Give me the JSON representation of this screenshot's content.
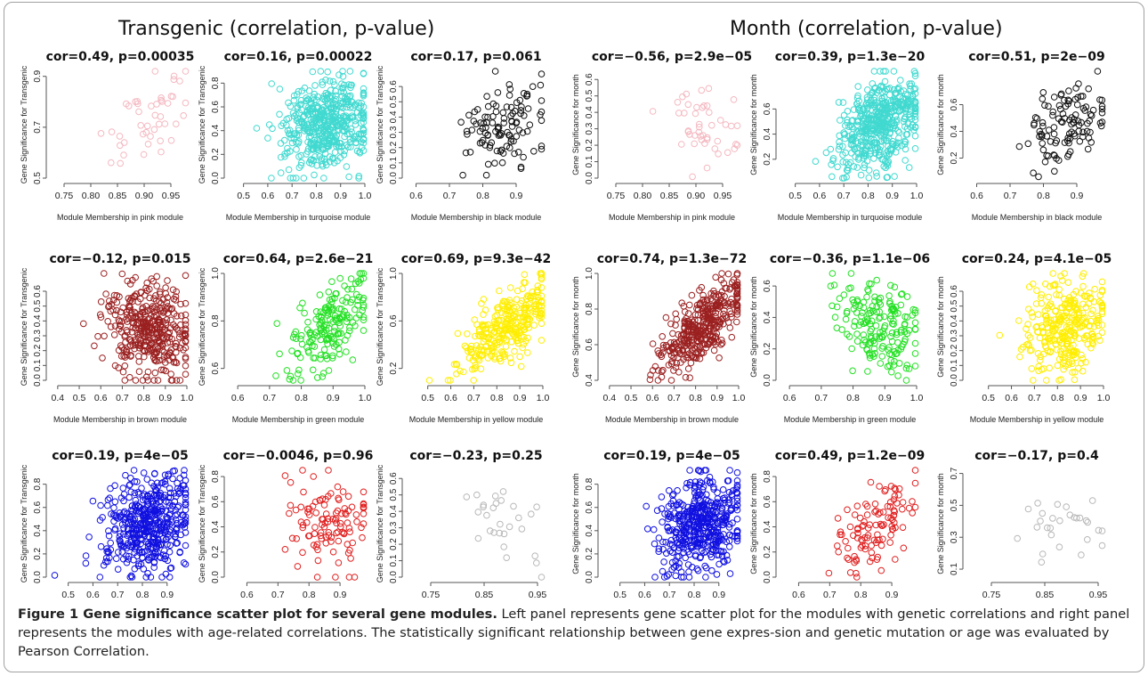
{
  "panels": {
    "left_title": "Transgenic (correlation, p-value)",
    "right_title": "Month (correlation, p-value)"
  },
  "caption": {
    "bold": "Figure 1 Gene significance scatter plot for several gene modules.",
    "text": " Left panel represents gene scatter plot for the modules with genetic correlations and right panel represents the modules with age-related correlations. The statistically significant relationship between gene expres-sion and genetic mutation or age was evaluated by Pearson Correlation."
  },
  "colors": {
    "pink": "#f4b8c0",
    "turquoise": "#40d9d0",
    "black": "#111111",
    "brown": "#9b2020",
    "green": "#22e022",
    "yellow": "#ffee00",
    "blue": "#1010e0",
    "red": "#e02020",
    "grey": "#b8b8b8"
  },
  "chart_data": [
    {
      "type": "scatter",
      "title": "cor=0.49, p=0.00035",
      "xlabel": "Module Membership in pink module",
      "ylabel": "Gene Significance for Transgenic",
      "color": "pink",
      "xlim": [
        0.73,
        0.98
      ],
      "ylim": [
        0.5,
        0.92
      ],
      "xticks": [
        "0.75",
        "0.80",
        "0.85",
        "0.90",
        "0.95"
      ],
      "xtick_values": [
        0.75,
        0.8,
        0.85,
        0.9,
        0.95
      ],
      "yticks": [
        "0.5",
        "0.7",
        "0.9"
      ],
      "ytick_values": [
        0.5,
        0.7,
        0.9
      ],
      "n": 45,
      "cor": 0.49
    },
    {
      "type": "scatter",
      "title": "cor=0.16, p=0.00022",
      "xlabel": "Module Membership in turquoise module",
      "ylabel": "Gene Significance for Transgenic",
      "color": "turquoise",
      "xlim": [
        0.45,
        1.0
      ],
      "ylim": [
        0.0,
        0.9
      ],
      "xticks": [
        "0.5",
        "0.6",
        "0.7",
        "0.8",
        "0.9",
        "1.0"
      ],
      "xtick_values": [
        0.5,
        0.6,
        0.7,
        0.8,
        0.9,
        1.0
      ],
      "yticks": [
        "0.0",
        "0.2",
        "0.4",
        "0.6",
        "0.8"
      ],
      "ytick_values": [
        0,
        0.2,
        0.4,
        0.6,
        0.8
      ],
      "n": 480,
      "cor": 0.16
    },
    {
      "type": "scatter",
      "title": "cor=0.17, p=0.061",
      "xlabel": "Module Membership in black module",
      "ylabel": "Gene Significance for Transgenic",
      "color": "black",
      "xlim": [
        0.58,
        0.98
      ],
      "ylim": [
        0.0,
        0.7
      ],
      "xticks": [
        "0.6",
        "0.7",
        "0.8",
        "0.9"
      ],
      "xtick_values": [
        0.6,
        0.7,
        0.8,
        0.9
      ],
      "yticks": [
        "0.0",
        "0.1",
        "0.2",
        "0.3",
        "0.4",
        "0.5",
        "0.6"
      ],
      "ytick_values": [
        0,
        0.1,
        0.2,
        0.3,
        0.4,
        0.5,
        0.6
      ],
      "n": 110,
      "cor": 0.17
    },
    {
      "type": "scatter",
      "title": "cor=−0.56, p=2.9e−05",
      "xlabel": "Module Membership in pink module",
      "ylabel": "Gene Significance for month",
      "color": "pink",
      "xlim": [
        0.73,
        0.98
      ],
      "ylim": [
        0.0,
        0.65
      ],
      "xticks": [
        "0.75",
        "0.80",
        "0.85",
        "0.90",
        "0.95"
      ],
      "xtick_values": [
        0.75,
        0.8,
        0.85,
        0.9,
        0.95
      ],
      "yticks": [
        "0.0",
        "0.1",
        "0.2",
        "0.3",
        "0.4",
        "0.5",
        "0.6"
      ],
      "ytick_values": [
        0,
        0.1,
        0.2,
        0.3,
        0.4,
        0.5,
        0.6
      ],
      "n": 45,
      "cor": -0.56
    },
    {
      "type": "scatter",
      "title": "cor=0.39, p=1.3e−20",
      "xlabel": "Module Membership in turquoise module",
      "ylabel": "Gene Significance for month",
      "color": "turquoise",
      "xlim": [
        0.45,
        1.0
      ],
      "ylim": [
        0.05,
        0.9
      ],
      "xticks": [
        "0.5",
        "0.6",
        "0.7",
        "0.8",
        "0.9",
        "1.0"
      ],
      "xtick_values": [
        0.5,
        0.6,
        0.7,
        0.8,
        0.9,
        1.0
      ],
      "yticks": [
        "0.2",
        "0.4",
        "0.6"
      ],
      "ytick_values": [
        0.2,
        0.4,
        0.6
      ],
      "n": 480,
      "cor": 0.39
    },
    {
      "type": "scatter",
      "title": "cor=0.51, p=2e−09",
      "xlabel": "Module Membership in black module",
      "ylabel": "Gene Significance for month",
      "color": "black",
      "xlim": [
        0.58,
        0.98
      ],
      "ylim": [
        0.05,
        0.85
      ],
      "xticks": [
        "0.6",
        "0.7",
        "0.8",
        "0.9"
      ],
      "xtick_values": [
        0.6,
        0.7,
        0.8,
        0.9
      ],
      "yticks": [
        "0.2",
        "0.4",
        "0.6"
      ],
      "ytick_values": [
        0.2,
        0.4,
        0.6
      ],
      "n": 110,
      "cor": 0.51
    },
    {
      "type": "scatter",
      "title": "cor=−0.12, p=0.015",
      "xlabel": "Module Membership in brown module",
      "ylabel": "Gene Significance for Transgenic",
      "color": "brown",
      "xlim": [
        0.38,
        1.0
      ],
      "ylim": [
        0.0,
        0.72
      ],
      "xticks": [
        "0.4",
        "0.5",
        "0.6",
        "0.7",
        "0.8",
        "0.9",
        "1.0"
      ],
      "xtick_values": [
        0.4,
        0.5,
        0.6,
        0.7,
        0.8,
        0.9,
        1.0
      ],
      "yticks": [
        "0.0",
        "0.1",
        "0.2",
        "0.3",
        "0.4",
        "0.5",
        "0.6"
      ],
      "ytick_values": [
        0,
        0.1,
        0.2,
        0.3,
        0.4,
        0.5,
        0.6
      ],
      "n": 380,
      "cor": -0.12
    },
    {
      "type": "scatter",
      "title": "cor=0.64, p=2.6e−21",
      "xlabel": "Module Membership in green module",
      "ylabel": "Gene Significance for Transgenic",
      "color": "green",
      "xlim": [
        0.58,
        1.0
      ],
      "ylim": [
        0.55,
        1.0
      ],
      "xticks": [
        "0.6",
        "0.7",
        "0.8",
        "0.9",
        "1.0"
      ],
      "xtick_values": [
        0.6,
        0.7,
        0.8,
        0.9,
        1.0
      ],
      "yticks": [
        "0.6",
        "0.8",
        "1.0"
      ],
      "ytick_values": [
        0.6,
        0.8,
        1.0
      ],
      "n": 180,
      "cor": 0.64
    },
    {
      "type": "scatter",
      "title": "cor=0.69, p=9.3e−42",
      "xlabel": "Module Membership in yellow module",
      "ylabel": "Gene Significance for Transgenic",
      "color": "yellow",
      "xlim": [
        0.42,
        1.0
      ],
      "ylim": [
        0.1,
        1.0
      ],
      "xticks": [
        "0.5",
        "0.6",
        "0.7",
        "0.8",
        "0.9",
        "1.0"
      ],
      "xtick_values": [
        0.5,
        0.6,
        0.7,
        0.8,
        0.9,
        1.0
      ],
      "yticks": [
        "0.2",
        "0.6",
        "1.0"
      ],
      "ytick_values": [
        0.2,
        0.6,
        1.0
      ],
      "n": 300,
      "cor": 0.69
    },
    {
      "type": "scatter",
      "title": "cor=0.74, p=1.3e−72",
      "xlabel": "Module Membership in brown module",
      "ylabel": "Gene Significance for month",
      "color": "brown",
      "xlim": [
        0.38,
        1.0
      ],
      "ylim": [
        0.4,
        1.0
      ],
      "xticks": [
        "0.4",
        "0.5",
        "0.6",
        "0.7",
        "0.8",
        "0.9",
        "1.0"
      ],
      "xtick_values": [
        0.4,
        0.5,
        0.6,
        0.7,
        0.8,
        0.9,
        1.0
      ],
      "yticks": [
        "0.4",
        "0.6",
        "0.8",
        "1.0"
      ],
      "ytick_values": [
        0.4,
        0.6,
        0.8,
        1.0
      ],
      "n": 380,
      "cor": 0.74
    },
    {
      "type": "scatter",
      "title": "cor=−0.36, p=1.1e−06",
      "xlabel": "Module Membership in green module",
      "ylabel": "Gene Significance for month",
      "color": "green",
      "xlim": [
        0.58,
        1.0
      ],
      "ylim": [
        0.0,
        0.68
      ],
      "xticks": [
        "0.6",
        "0.7",
        "0.8",
        "0.9",
        "1.0"
      ],
      "xtick_values": [
        0.6,
        0.7,
        0.8,
        0.9,
        1.0
      ],
      "yticks": [
        "0.0",
        "0.2",
        "0.4",
        "0.6"
      ],
      "ytick_values": [
        0,
        0.2,
        0.4,
        0.6
      ],
      "n": 180,
      "cor": -0.36
    },
    {
      "type": "scatter",
      "title": "cor=0.24, p=4.1e−05",
      "xlabel": "Module Membership in yellow module",
      "ylabel": "Gene Significance for month",
      "color": "yellow",
      "xlim": [
        0.42,
        1.0
      ],
      "ylim": [
        0.0,
        0.72
      ],
      "xticks": [
        "0.5",
        "0.6",
        "0.7",
        "0.8",
        "0.9",
        "1.0"
      ],
      "xtick_values": [
        0.5,
        0.6,
        0.7,
        0.8,
        0.9,
        1.0
      ],
      "yticks": [
        "0.0",
        "0.1",
        "0.2",
        "0.3",
        "0.4",
        "0.5",
        "0.6"
      ],
      "ytick_values": [
        0,
        0.1,
        0.2,
        0.3,
        0.4,
        0.5,
        0.6
      ],
      "n": 300,
      "cor": 0.24
    },
    {
      "type": "scatter",
      "title": "cor=0.19, p=4e−05",
      "xlabel": "Module Membership in blue module",
      "ylabel": "Gene Significance for Transgenic",
      "color": "blue",
      "xlim": [
        0.44,
        0.98
      ],
      "ylim": [
        0.0,
        0.92
      ],
      "xticks": [
        "0.5",
        "0.6",
        "0.7",
        "0.8",
        "0.9"
      ],
      "xtick_values": [
        0.5,
        0.6,
        0.7,
        0.8,
        0.9
      ],
      "yticks": [
        "0.0",
        "0.2",
        "0.4",
        "0.6",
        "0.8"
      ],
      "ytick_values": [
        0,
        0.2,
        0.4,
        0.6,
        0.8
      ],
      "n": 460,
      "cor": 0.19
    },
    {
      "type": "scatter",
      "title": "cor=−0.0046, p=0.96",
      "xlabel": "Module Membership in red module",
      "ylabel": "Gene Significance for Transgenic",
      "color": "red",
      "xlim": [
        0.55,
        0.98
      ],
      "ylim": [
        0.0,
        0.85
      ],
      "xticks": [
        "0.6",
        "0.7",
        "0.8",
        "0.9"
      ],
      "xtick_values": [
        0.6,
        0.7,
        0.8,
        0.9
      ],
      "yticks": [
        "0.0",
        "0.2",
        "0.4",
        "0.6",
        "0.8"
      ],
      "ytick_values": [
        0,
        0.2,
        0.4,
        0.6,
        0.8
      ],
      "n": 110,
      "cor": -0.0046
    },
    {
      "type": "scatter",
      "title": "cor=−0.23, p=0.25",
      "xlabel": "Module Membership in grey module",
      "ylabel": "Gene Significance for Transgenic",
      "color": "grey",
      "xlim": [
        0.71,
        0.96
      ],
      "ylim": [
        0.0,
        0.65
      ],
      "xticks": [
        "0.75",
        "0.85",
        "0.95"
      ],
      "xtick_values": [
        0.75,
        0.85,
        0.95
      ],
      "yticks": [
        "0.0",
        "0.1",
        "0.2",
        "0.3",
        "0.4",
        "0.5",
        "0.6"
      ],
      "ytick_values": [
        0,
        0.1,
        0.2,
        0.3,
        0.4,
        0.5,
        0.6
      ],
      "n": 28,
      "cor": -0.23
    },
    {
      "type": "scatter",
      "title": "cor=0.19, p=4e−05",
      "xlabel": "Module Membership in blue module",
      "ylabel": "Gene Significance for month",
      "color": "blue",
      "xlim": [
        0.44,
        0.98
      ],
      "ylim": [
        0.0,
        0.92
      ],
      "xticks": [
        "0.5",
        "0.6",
        "0.7",
        "0.8",
        "0.9"
      ],
      "xtick_values": [
        0.5,
        0.6,
        0.7,
        0.8,
        0.9
      ],
      "yticks": [
        "0.0",
        "0.2",
        "0.4",
        "0.6",
        "0.8"
      ],
      "ytick_values": [
        0,
        0.2,
        0.4,
        0.6,
        0.8
      ],
      "n": 460,
      "cor": 0.19
    },
    {
      "type": "scatter",
      "title": "cor=0.49, p=1.2e−09",
      "xlabel": "Module Membership in red module",
      "ylabel": "Gene Significance for month",
      "color": "red",
      "xlim": [
        0.55,
        0.98
      ],
      "ylim": [
        0.0,
        0.85
      ],
      "xticks": [
        "0.6",
        "0.7",
        "0.8",
        "0.9"
      ],
      "xtick_values": [
        0.6,
        0.7,
        0.8,
        0.9
      ],
      "yticks": [
        "0.0",
        "0.2",
        "0.4",
        "0.6",
        "0.8"
      ],
      "ytick_values": [
        0,
        0.2,
        0.4,
        0.6,
        0.8
      ],
      "n": 110,
      "cor": 0.49
    },
    {
      "type": "scatter",
      "title": "cor=−0.17, p=0.4",
      "xlabel": "Module Membership in grey module",
      "ylabel": "Gene Significance for month",
      "color": "grey",
      "xlim": [
        0.71,
        0.96
      ],
      "ylim": [
        0.05,
        0.72
      ],
      "xticks": [
        "0.75",
        "0.85",
        "0.95"
      ],
      "xtick_values": [
        0.75,
        0.85,
        0.95
      ],
      "yticks": [
        "0.1",
        "0.3",
        "0.5",
        "0.7"
      ],
      "ytick_values": [
        0.1,
        0.3,
        0.5,
        0.7
      ],
      "n": 28,
      "cor": -0.17
    }
  ]
}
